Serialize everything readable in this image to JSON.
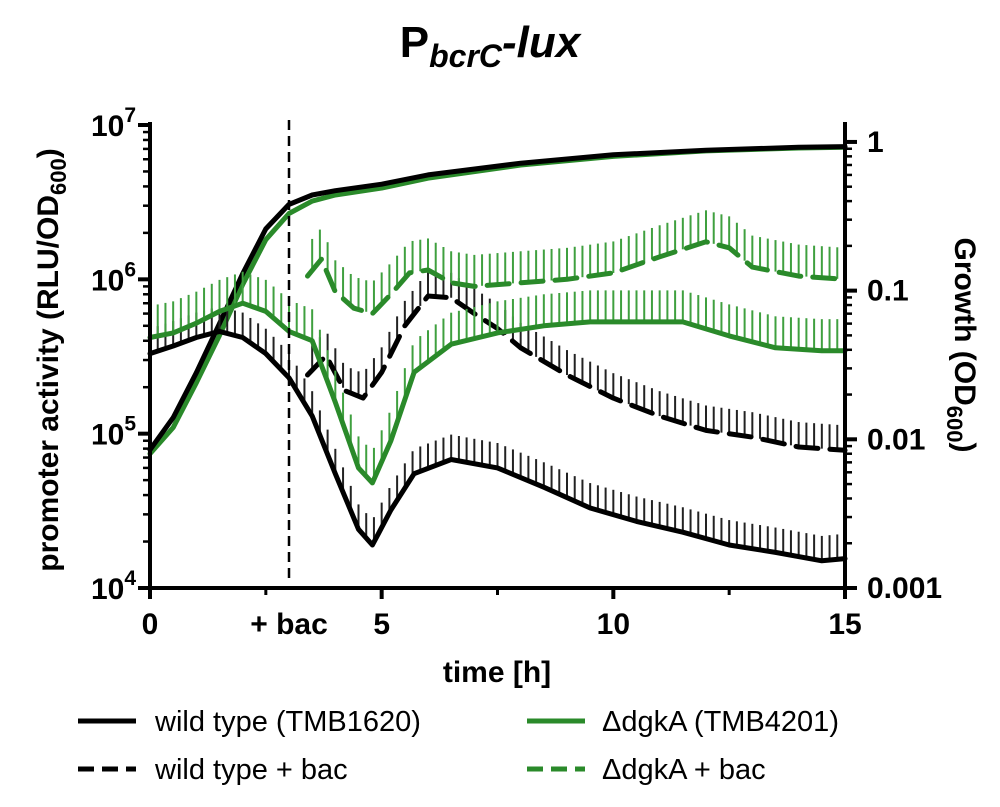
{
  "chart_data": {
    "type": "line",
    "title": {
      "main": "P",
      "sub": "bcrC",
      "suffix": "-lux"
    },
    "xlabel": "time [h]",
    "ylabel_left": {
      "main": "promoter activity (RLU/OD",
      "sub": "600",
      "end": ")"
    },
    "ylabel_right": {
      "main": "Growth (OD",
      "sub": "600",
      "end": ")"
    },
    "xlim": [
      0,
      15
    ],
    "xticks": [
      {
        "value": 0,
        "label": "0"
      },
      {
        "value": 5,
        "label": "5"
      },
      {
        "value": 10,
        "label": "10"
      },
      {
        "value": 15,
        "label": "15"
      }
    ],
    "annotation": {
      "x": 3.0,
      "label": "+ bac"
    },
    "yleft": {
      "scale": "log",
      "lim": [
        10000,
        10000000
      ],
      "ticks": [
        {
          "value": 10000,
          "base": "10",
          "exp": "4"
        },
        {
          "value": 100000,
          "base": "10",
          "exp": "5"
        },
        {
          "value": 1000000,
          "base": "10",
          "exp": "6"
        },
        {
          "value": 10000000,
          "base": "10",
          "exp": "7"
        }
      ]
    },
    "yright": {
      "scale": "log",
      "lim": [
        0.001,
        1.3
      ],
      "ticks": [
        {
          "value": 0.001,
          "label": "0.001"
        },
        {
          "value": 0.01,
          "label": "0.01"
        },
        {
          "value": 0.1,
          "label": "0.1"
        },
        {
          "value": 1,
          "label": "1"
        }
      ]
    },
    "colors": {
      "wild_type": "#000000",
      "dgka": "#2a8a2a",
      "error_bar_dgka": "#3fa03f"
    },
    "series": [
      {
        "legend": "wild type (TMB1620)",
        "color": "#000000",
        "dash": "solid",
        "axis": "left",
        "error_bars": true,
        "x": [
          0,
          0.5,
          1.0,
          1.5,
          2.0,
          2.5,
          3.0,
          3.5,
          4.0,
          4.5,
          4.8,
          5.2,
          5.7,
          6.5,
          7.5,
          8.5,
          9.5,
          10.5,
          11.5,
          12.5,
          13.5,
          14.5,
          15
        ],
        "y": [
          330000,
          370000,
          420000,
          460000,
          420000,
          330000,
          230000,
          130000,
          55000,
          24000,
          19000,
          32000,
          55000,
          68000,
          60000,
          45000,
          33000,
          27000,
          23000,
          19000,
          17000,
          15000,
          15500
        ]
      },
      {
        "legend": "wild type + bac",
        "color": "#000000",
        "dash": "dashed",
        "axis": "left",
        "error_bars": true,
        "x": [
          3.4,
          3.8,
          4.2,
          4.6,
          5.0,
          5.5,
          6.0,
          6.5,
          7.0,
          7.5,
          8.0,
          9.0,
          10.0,
          11.0,
          12.0,
          13.0,
          14.0,
          15.0
        ],
        "y": [
          240000,
          320000,
          190000,
          170000,
          250000,
          500000,
          780000,
          760000,
          600000,
          480000,
          360000,
          240000,
          170000,
          130000,
          105000,
          95000,
          82000,
          78000
        ]
      },
      {
        "legend": "ΔdgkA (TMB4201)",
        "color": "#2a8a2a",
        "dash": "solid",
        "axis": "left",
        "error_bars": true,
        "x": [
          0,
          0.5,
          1.0,
          1.5,
          2.0,
          2.5,
          3.0,
          3.5,
          4.0,
          4.5,
          4.8,
          5.2,
          5.7,
          6.5,
          7.5,
          8.5,
          9.5,
          10.5,
          11.5,
          12.5,
          13.5,
          14.5,
          15
        ],
        "y": [
          420000,
          450000,
          520000,
          620000,
          700000,
          620000,
          460000,
          400000,
          160000,
          60000,
          48000,
          90000,
          250000,
          380000,
          450000,
          500000,
          530000,
          530000,
          530000,
          430000,
          360000,
          345000,
          345000
        ]
      },
      {
        "legend": "ΔdgkA + bac",
        "color": "#2a8a2a",
        "dash": "dashed",
        "axis": "left",
        "error_bars": true,
        "x": [
          3.4,
          3.7,
          4.0,
          4.4,
          4.8,
          5.2,
          5.6,
          6.0,
          6.5,
          7.0,
          8.0,
          9.0,
          10.0,
          11.0,
          12.0,
          12.5,
          13.0,
          14.0,
          15.0
        ],
        "y": [
          1050000,
          1350000,
          830000,
          650000,
          600000,
          800000,
          1100000,
          1150000,
          950000,
          900000,
          950000,
          1000000,
          1100000,
          1400000,
          1750000,
          1600000,
          1200000,
          1050000,
          1000000
        ]
      },
      {
        "legend": "",
        "color": "#000000",
        "dash": "solid",
        "axis": "right",
        "error_bars": false,
        "x": [
          0,
          0.5,
          1.0,
          1.5,
          2.0,
          2.5,
          3.0,
          3.5,
          4.0,
          5.0,
          6.0,
          8.0,
          10.0,
          12.0,
          14.0,
          15.0
        ],
        "y": [
          0.0085,
          0.014,
          0.028,
          0.06,
          0.13,
          0.26,
          0.38,
          0.44,
          0.47,
          0.52,
          0.6,
          0.72,
          0.82,
          0.88,
          0.92,
          0.93
        ]
      },
      {
        "legend": "",
        "color": "#2a8a2a",
        "dash": "solid",
        "axis": "right",
        "error_bars": false,
        "x": [
          0,
          0.5,
          1.0,
          1.5,
          2.0,
          2.5,
          3.0,
          3.5,
          4.0,
          5.0,
          6.0,
          8.0,
          10.0,
          12.0,
          14.0,
          15.0
        ],
        "y": [
          0.008,
          0.012,
          0.024,
          0.05,
          0.11,
          0.22,
          0.33,
          0.4,
          0.44,
          0.49,
          0.57,
          0.7,
          0.8,
          0.87,
          0.91,
          0.92
        ]
      }
    ]
  }
}
